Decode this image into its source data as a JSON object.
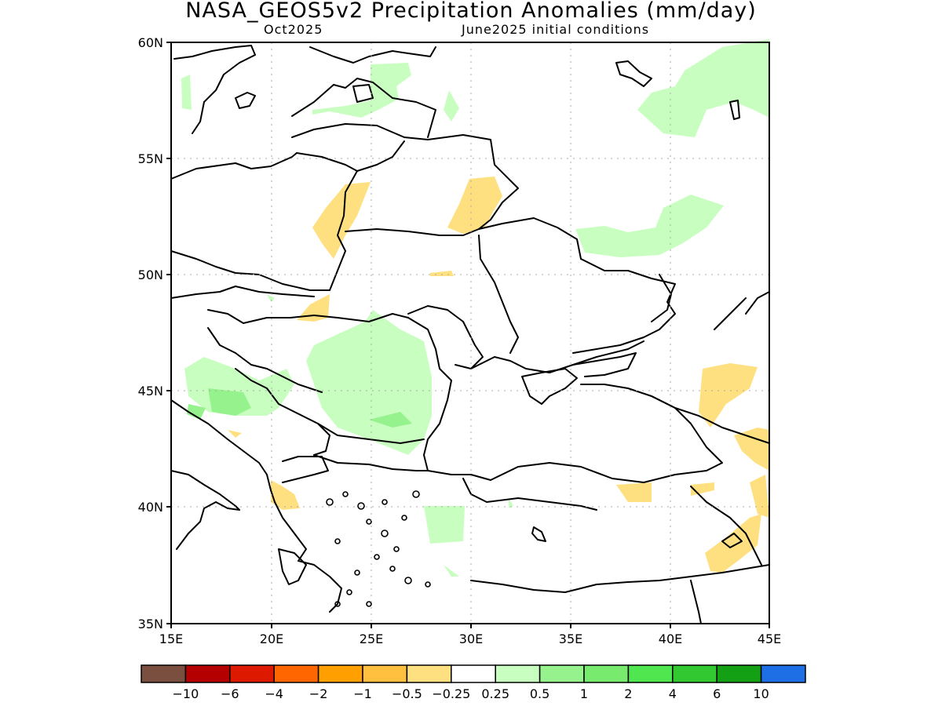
{
  "title": "NASA_GEOS5v2 Precipitation Anomalies (mm/day)",
  "subtitle_left": "Oct2025",
  "subtitle_right": "June2025 initial conditions",
  "map": {
    "lat_range": [
      35,
      60
    ],
    "lon_range": [
      15,
      45
    ],
    "lat_ticks": [
      "35N",
      "40N",
      "45N",
      "50N",
      "55N",
      "60N"
    ],
    "lon_ticks": [
      "15E",
      "20E",
      "25E",
      "30E",
      "35E",
      "40E",
      "45E"
    ]
  },
  "colorbar": {
    "colors": [
      "#7a4f3f",
      "#b50000",
      "#dd1a00",
      "#ff6600",
      "#ffa000",
      "#ffc040",
      "#ffe080",
      "#ffffff",
      "#c8ffc0",
      "#96f28c",
      "#78eb6e",
      "#50e650",
      "#32c832",
      "#14a014",
      "#1e6ee6"
    ],
    "labels": [
      "−10",
      "−6",
      "−4",
      "−2",
      "−1",
      "−0.5",
      "−0.25",
      "0.25",
      "0.5",
      "1",
      "2",
      "4",
      "6",
      "10"
    ]
  }
}
